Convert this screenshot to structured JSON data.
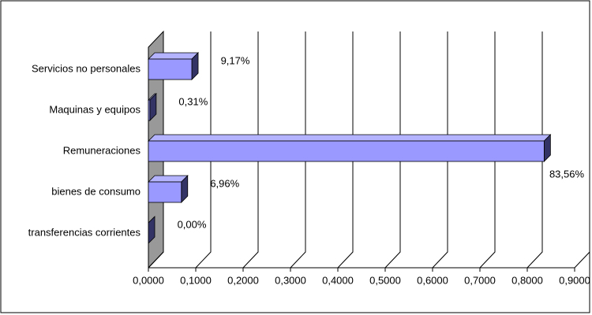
{
  "chart_data": {
    "type": "bar",
    "orientation": "horizontal",
    "categories": [
      "Servicios no personales",
      "Maquinas y equipos",
      "Remuneraciones",
      "bienes de consumo",
      "transferencias corrientes"
    ],
    "values": [
      0.0917,
      0.0031,
      0.8356,
      0.0696,
      0.0
    ],
    "value_labels": [
      "9,17%",
      "0,31%",
      "83,56%",
      "6,96%",
      "0,00%"
    ],
    "color": "#9999ff",
    "xlim": [
      0,
      0.9
    ],
    "xticks": [
      {
        "value": 0,
        "label": "0,0000"
      },
      {
        "value": 0.1,
        "label": "0,1000"
      },
      {
        "value": 0.2,
        "label": "0,2000"
      },
      {
        "value": 0.3,
        "label": "0,3000"
      },
      {
        "value": 0.4,
        "label": "0,4000"
      },
      {
        "value": 0.5,
        "label": "0,5000"
      },
      {
        "value": 0.6,
        "label": "0,6000"
      },
      {
        "value": 0.7,
        "label": "0,7000"
      },
      {
        "value": 0.8,
        "label": "0,8000"
      },
      {
        "value": 0.9,
        "label": "0,9000"
      }
    ],
    "grid": true
  }
}
